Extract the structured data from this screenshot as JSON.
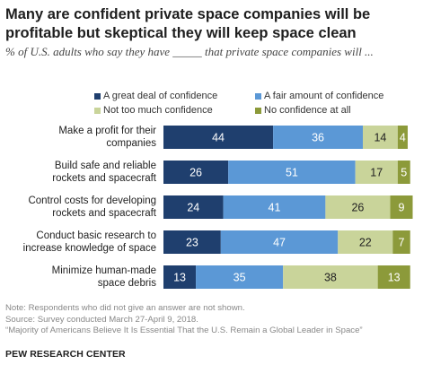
{
  "title_line1": "Many are confident private space companies will be",
  "title_line2": "profitable but skeptical they will keep space clean",
  "subtitle": "% of U.S. adults who say they have _____ that private space companies will ...",
  "notes": {
    "note": "Note: Respondents who did not give an answer are not shown.",
    "source": "Source: Survey conducted March 27-April 9, 2018.",
    "report": "“Majority of Americans Believe It Is Essential That the U.S. Remain a Global Leader in Space”"
  },
  "org": "PEW RESEARCH CENTER",
  "chart_data": {
    "type": "bar",
    "orientation": "horizontal",
    "stacked": true,
    "categories": [
      [
        "Make a profit for their",
        "companies"
      ],
      [
        "Build safe and reliable",
        "rockets and spacecraft"
      ],
      [
        "Control costs for developing",
        "rockets and spacecraft"
      ],
      [
        "Conduct basic research to",
        "increase knowledge of space"
      ],
      [
        "Minimize human-made",
        "space debris"
      ]
    ],
    "series": [
      {
        "name": "A great deal of confidence",
        "color": "#1f3f6e",
        "values": [
          44,
          26,
          24,
          23,
          13
        ]
      },
      {
        "name": "A fair amount of confidence",
        "color": "#5b98d6",
        "values": [
          36,
          51,
          41,
          47,
          35
        ]
      },
      {
        "name": "Not too much confidence",
        "color": "#c9d49a",
        "values": [
          14,
          17,
          26,
          22,
          38
        ]
      },
      {
        "name": "No confidence at all",
        "color": "#8c9a3a",
        "values": [
          4,
          5,
          9,
          7,
          13
        ]
      }
    ],
    "legend_position": "top",
    "grid": false
  }
}
